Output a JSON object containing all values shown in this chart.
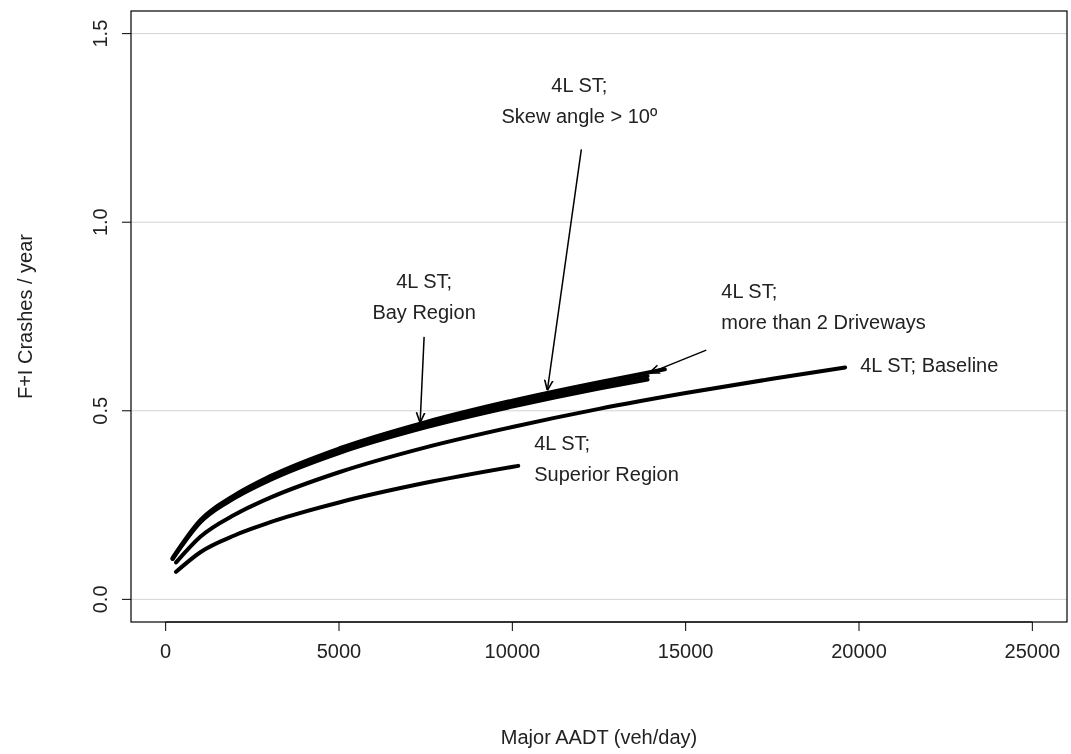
{
  "chart_data": {
    "type": "line",
    "xlabel": "Major AADT (veh/day)",
    "ylabel": "F+I Crashes / year",
    "xlim": [
      -1000,
      26000
    ],
    "ylim": [
      -0.06,
      1.56
    ],
    "xticks": [
      0,
      5000,
      10000,
      15000,
      20000,
      25000
    ],
    "yticks": [
      {
        "value": 0,
        "label": "0.0"
      },
      {
        "value": 0.5,
        "label": "0.5"
      },
      {
        "value": 1,
        "label": "1.0"
      },
      {
        "value": 1.5,
        "label": "1.5"
      }
    ],
    "grid": "y",
    "marker": "none",
    "line_style": "solid",
    "series": [
      {
        "color": "#000000",
        "x": [
          300,
          1000,
          2000,
          3000,
          5000,
          7500,
          10000,
          12500,
          15000,
          17500,
          19600
        ],
        "values": [
          0.098,
          0.166,
          0.225,
          0.269,
          0.337,
          0.403,
          0.457,
          0.505,
          0.547,
          0.585,
          0.615
        ]
      },
      {
        "color": "#000000",
        "x": [
          300,
          1000,
          2000,
          3000,
          5000,
          7500,
          10170
        ],
        "values": [
          0.073,
          0.125,
          0.17,
          0.204,
          0.257,
          0.309,
          0.354
        ]
      },
      {
        "color": "#000000",
        "x": [
          200,
          1000,
          2000,
          3000,
          5000,
          7500,
          10000,
          12500,
          13900
        ],
        "values": [
          0.107,
          0.204,
          0.269,
          0.316,
          0.388,
          0.456,
          0.511,
          0.559,
          0.583
        ]
      },
      {
        "color": "#000000",
        "x": [
          200,
          1000,
          2000,
          3000,
          5000,
          7500,
          10000,
          12500,
          13900
        ],
        "values": [
          0.108,
          0.207,
          0.273,
          0.321,
          0.394,
          0.463,
          0.519,
          0.567,
          0.592
        ]
      },
      {
        "color": "#000000",
        "x": [
          200,
          1000,
          2000,
          3000,
          5000,
          7500,
          10000,
          12500,
          14400
        ],
        "values": [
          0.11,
          0.21,
          0.277,
          0.326,
          0.4,
          0.47,
          0.527,
          0.576,
          0.61
        ]
      }
    ],
    "annotations": [
      {
        "text": "4L ST;\nSkew angle > 10º",
        "x": 11010,
        "y": 0.554
      },
      {
        "text": "4L ST;\nBay Region",
        "x": 7340,
        "y": 0.468
      },
      {
        "text": "4L ST;\nmore than 2 Driveways",
        "x": 13950,
        "y": 0.6
      },
      {
        "text": "4L ST; Baseline",
        "x": 19600,
        "y": 0.615
      },
      {
        "text": "4L ST;\nSuperior Region",
        "x": 10170,
        "y": 0.354
      }
    ]
  }
}
